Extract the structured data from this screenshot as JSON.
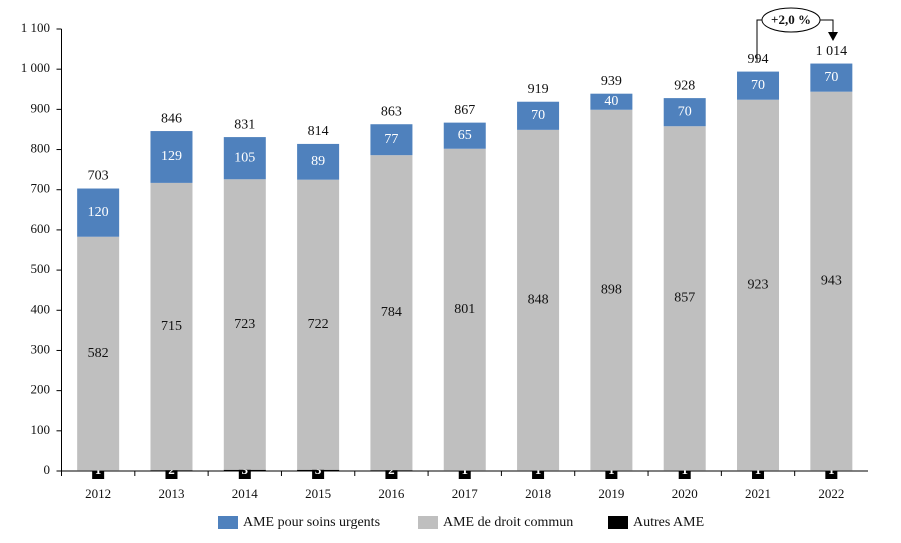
{
  "chart_data": {
    "type": "stacked-bar",
    "annotation": "+2,0 %",
    "categories": [
      "2012",
      "2013",
      "2014",
      "2015",
      "2016",
      "2017",
      "2018",
      "2019",
      "2020",
      "2021",
      "2022"
    ],
    "series": [
      {
        "name": "AME pour soins urgents",
        "color": "#4f81bd",
        "values": [
          120,
          129,
          105,
          89,
          77,
          65,
          70,
          40,
          70,
          70,
          70
        ]
      },
      {
        "name": "AME de droit commun",
        "color": "#bfbfbf",
        "values": [
          582,
          715,
          723,
          722,
          784,
          801,
          848,
          898,
          857,
          923,
          943
        ]
      },
      {
        "name": "Autres AME",
        "color": "#000000",
        "values": [
          1,
          2,
          3,
          3,
          2,
          1,
          1,
          1,
          1,
          1,
          1
        ]
      }
    ],
    "totals": {
      "values": [
        703,
        846,
        831,
        814,
        863,
        867,
        919,
        939,
        928,
        994,
        1014
      ],
      "value_labels": [
        "703",
        "846",
        "831",
        "814",
        "863",
        "867",
        "919",
        "939",
        "928",
        "994",
        "1 014"
      ]
    },
    "ylim": [
      0,
      1100
    ],
    "yticks": [
      0,
      100,
      200,
      300,
      400,
      500,
      600,
      700,
      800,
      900,
      {
        "value": 1000,
        "label": "1 000"
      },
      {
        "value": 1100,
        "label": "1 100"
      }
    ]
  }
}
